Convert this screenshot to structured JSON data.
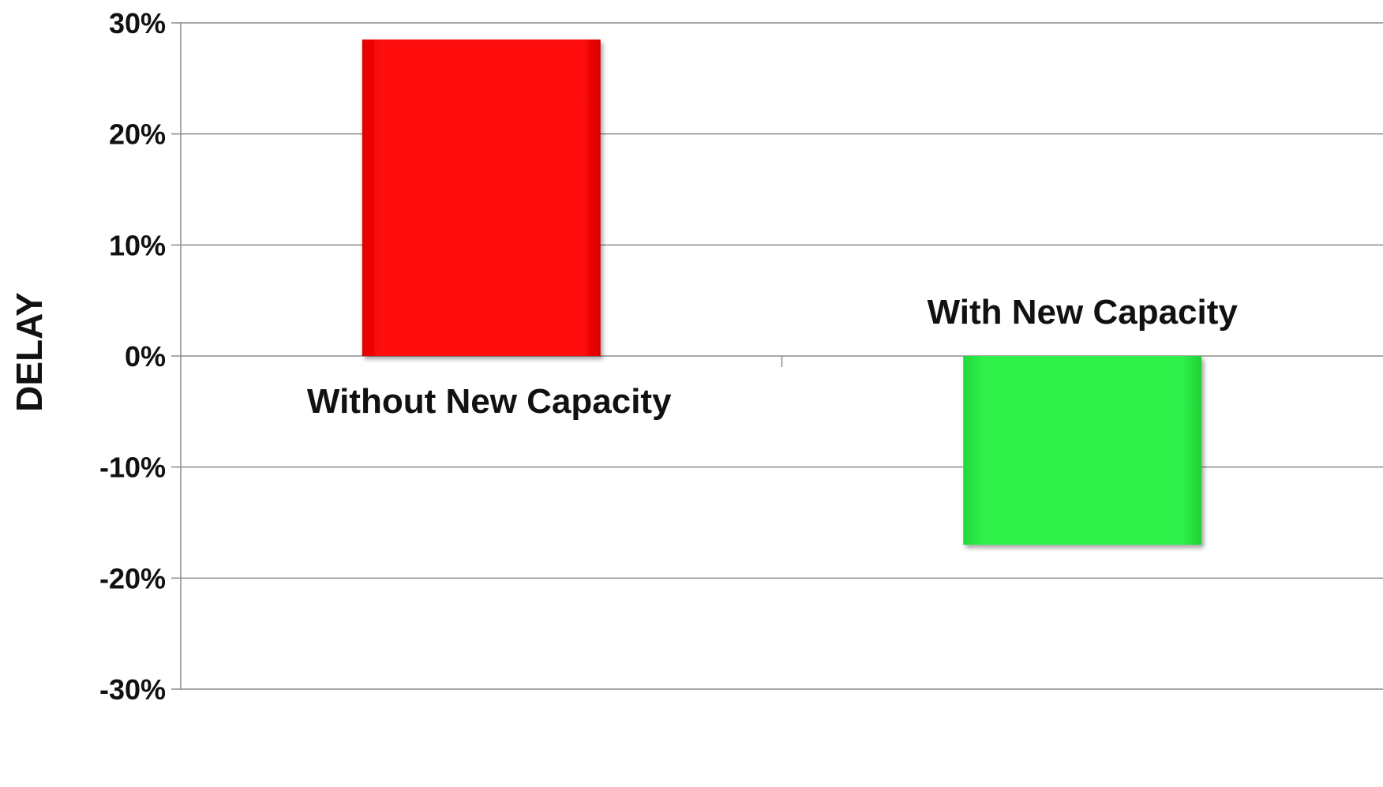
{
  "chart_data": {
    "type": "bar",
    "title": "",
    "xlabel": "",
    "ylabel": "DELAY",
    "ylim": [
      -30,
      30
    ],
    "y_ticks": [
      30,
      20,
      10,
      0,
      -10,
      -20,
      -30
    ],
    "y_tick_labels": [
      "30%",
      "20%",
      "10%",
      "0%",
      "-10%",
      "-20%",
      "-30%"
    ],
    "categories": [
      "Without New Capacity",
      "With New Capacity"
    ],
    "values": [
      28.5,
      -17
    ],
    "colors": [
      "#ff0a0a",
      "#2ff04a"
    ],
    "grid": true,
    "legend": "none"
  }
}
